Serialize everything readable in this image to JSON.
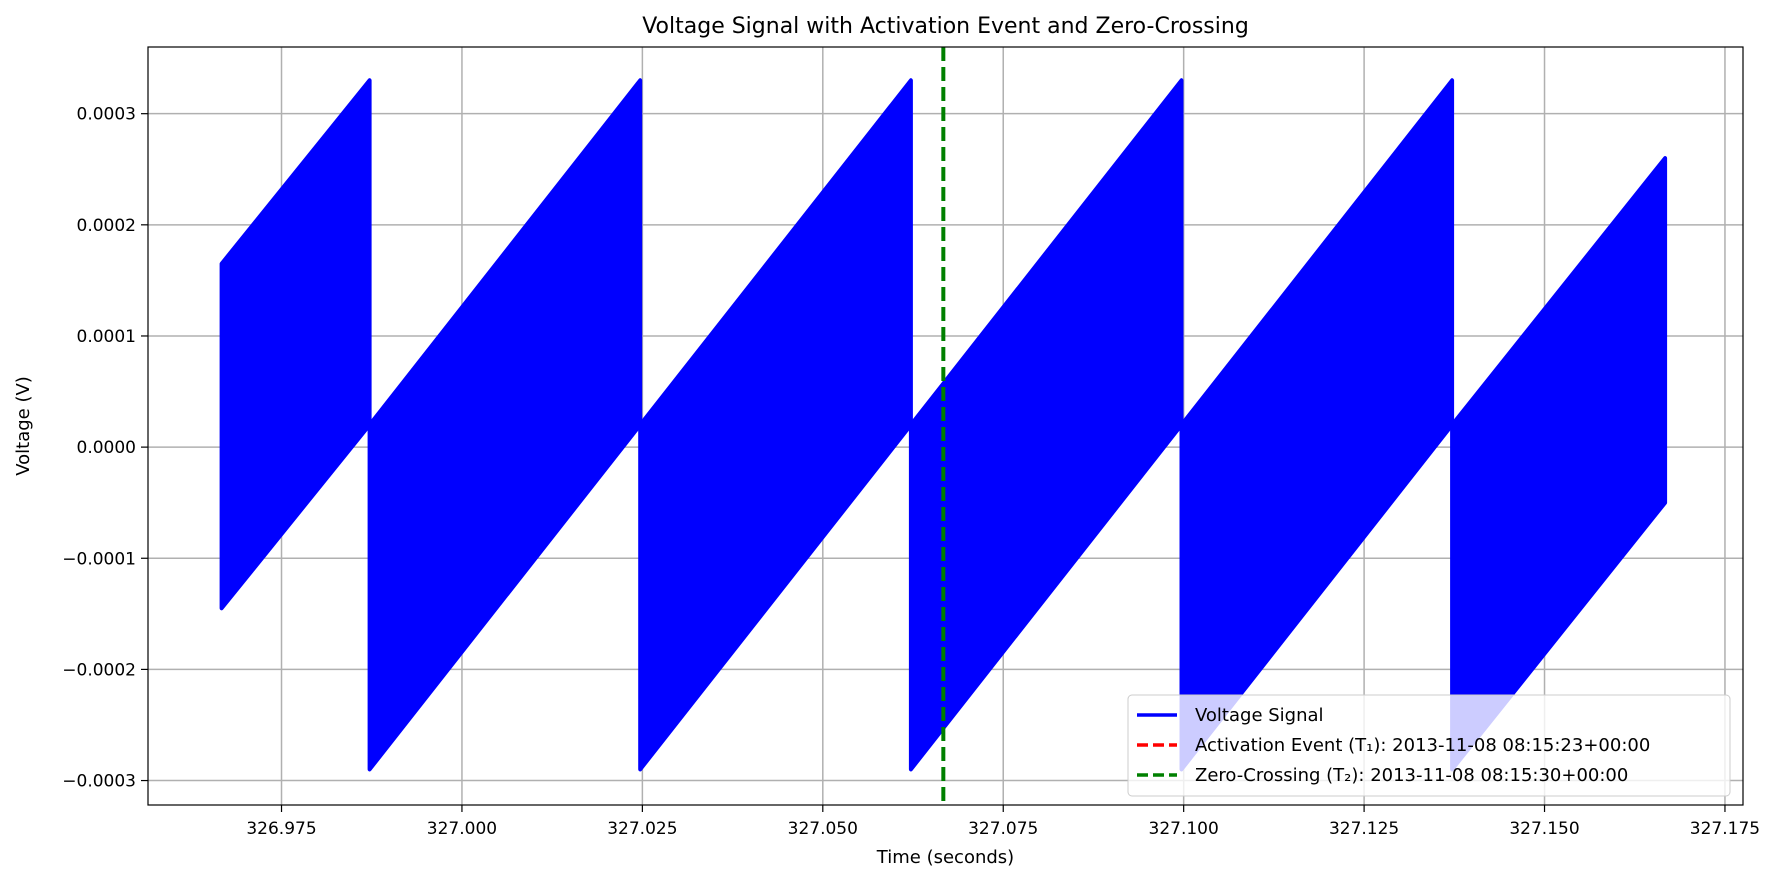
{
  "chart_data": {
    "type": "line",
    "title": "Voltage Signal with Activation Event and Zero-Crossing",
    "xlabel": "Time (seconds)",
    "ylabel": "Voltage (V)",
    "xlim": [
      326.9565,
      327.1775
    ],
    "ylim": [
      -0.000322,
      0.00036
    ],
    "grid": true,
    "legend_position": "bottom-right",
    "x_ticks": [
      326.975,
      327.0,
      327.025,
      327.05,
      327.075,
      327.1,
      327.125,
      327.15,
      327.175
    ],
    "x_tick_labels": [
      "326.975",
      "327.000",
      "327.025",
      "327.050",
      "327.075",
      "327.100",
      "327.125",
      "327.150",
      "327.175"
    ],
    "y_ticks": [
      0.0003,
      0.0002,
      0.0001,
      0.0,
      -0.0001,
      -0.0002,
      -0.0003
    ],
    "y_tick_labels": [
      "0.0003",
      "0.0002",
      "0.0001",
      "0.0000",
      "−0.0001",
      "−0.0002",
      "−0.0003"
    ],
    "series": [
      {
        "name": "Voltage Signal",
        "color": "#0000ff",
        "style": "solid",
        "envelope": [
          {
            "x": 326.9667,
            "lower": -0.000145,
            "upper": 0.000165
          },
          {
            "x": 326.9872,
            "lower": 2e-05,
            "upper": 0.00033
          },
          {
            "x": 326.9872,
            "lower": -0.00029,
            "upper": 2e-05
          },
          {
            "x": 327.0247,
            "lower": 2e-05,
            "upper": 0.00033
          },
          {
            "x": 327.0247,
            "lower": -0.00029,
            "upper": 2e-05
          },
          {
            "x": 327.0622,
            "lower": 2e-05,
            "upper": 0.00033
          },
          {
            "x": 327.0622,
            "lower": -0.00029,
            "upper": 2e-05
          },
          {
            "x": 327.0997,
            "lower": 2e-05,
            "upper": 0.00033
          },
          {
            "x": 327.0997,
            "lower": -0.00029,
            "upper": 2e-05
          },
          {
            "x": 327.1372,
            "lower": 2e-05,
            "upper": 0.00033
          },
          {
            "x": 327.1372,
            "lower": -0.00029,
            "upper": 2e-05
          },
          {
            "x": 327.1667,
            "lower": -5e-05,
            "upper": 0.00026
          }
        ]
      },
      {
        "name": "Activation Event (T₁): 2013-11-08 08:15:23+00:00",
        "color": "#ff0000",
        "style": "dashed"
      },
      {
        "name": "Zero-Crossing (T₂): 2013-11-08 08:15:30+00:00",
        "color": "#008000",
        "style": "dashed",
        "x": 327.0667
      }
    ]
  }
}
